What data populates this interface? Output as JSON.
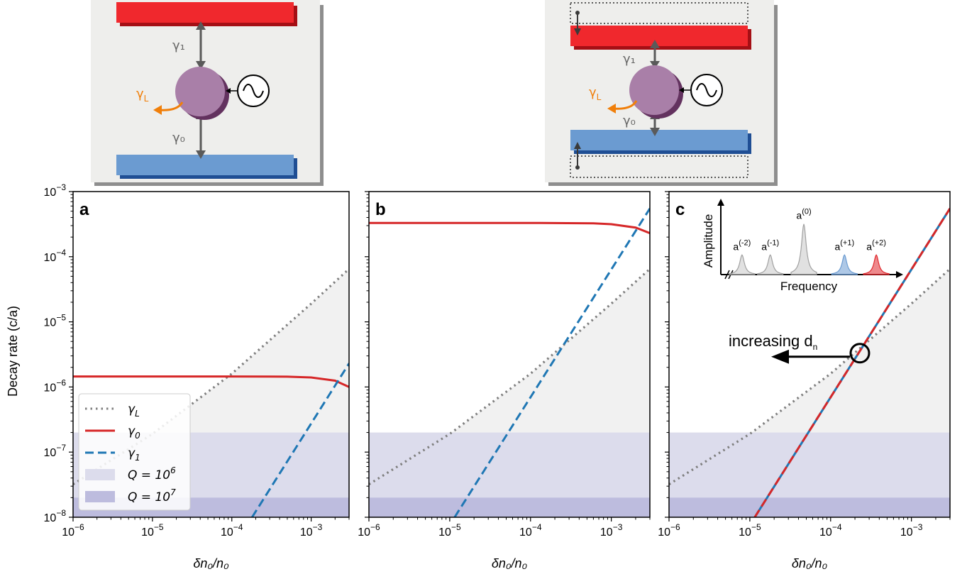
{
  "schematics": {
    "left": {
      "gamma1": "γ₁",
      "gamma0": "γ₀",
      "gammaL": "γ",
      "gammaL_sub": "L"
    },
    "right": {
      "gamma1": "γ₁",
      "gamma0": "γ₀",
      "gammaL": "γ",
      "gammaL_sub": "L"
    },
    "colors": {
      "top_mirror": "#f0282d",
      "bottom_mirror": "#6b9bd1",
      "resonator": "#a97fa8",
      "arrow_gray": "#5a5a5a",
      "orange": "#f07f0a"
    }
  },
  "chart_data": [
    {
      "panel": "a",
      "type": "line",
      "xscale": "log",
      "yscale": "log",
      "xlim": [
        1e-06,
        0.003
      ],
      "ylim": [
        1e-08,
        0.001
      ],
      "xlabel": "δn₀/n₀",
      "ylabel": "Decay rate (c/a)",
      "xticks": [
        {
          "value": 1e-06,
          "base": "10",
          "exp": "−6"
        },
        {
          "value": 1e-05,
          "base": "10",
          "exp": "−5"
        },
        {
          "value": 0.0001,
          "base": "10",
          "exp": "−4"
        },
        {
          "value": 0.001,
          "base": "10",
          "exp": "−3"
        }
      ],
      "yticks": [
        {
          "value": 1e-08,
          "base": "10",
          "exp": "−8"
        },
        {
          "value": 1e-07,
          "base": "10",
          "exp": "−7"
        },
        {
          "value": 1e-06,
          "base": "10",
          "exp": "−6"
        },
        {
          "value": 1e-05,
          "base": "10",
          "exp": "−5"
        },
        {
          "value": 0.0001,
          "base": "10",
          "exp": "−4"
        },
        {
          "value": 0.001,
          "base": "10",
          "exp": "−3"
        }
      ],
      "bands": [
        {
          "name": "Q = 10⁶",
          "y0": 1e-08,
          "y1": 2e-07,
          "color": "#dcdcec"
        },
        {
          "name": "Q = 10⁷",
          "y0": 1e-08,
          "y1": 2e-08,
          "color": "#bdbcde"
        }
      ],
      "upper_region_color": "#f1f1f1",
      "series": [
        {
          "name": "γL",
          "style": "dotted",
          "color": "#7f7f7f",
          "points": [
            [
              1e-06,
              3.2e-08
            ],
            [
              1e-05,
              1.9e-07
            ],
            [
              0.0001,
              1.6e-06
            ],
            [
              0.001,
              1.9e-05
            ],
            [
              0.003,
              6.5e-05
            ]
          ]
        },
        {
          "name": "γ0",
          "style": "solid",
          "color": "#d62728",
          "points": [
            [
              1e-06,
              1.45e-06
            ],
            [
              0.0001,
              1.45e-06
            ],
            [
              0.0005,
              1.44e-06
            ],
            [
              0.001,
              1.4e-06
            ],
            [
              0.002,
              1.25e-06
            ],
            [
              0.003,
              1e-06
            ]
          ]
        },
        {
          "name": "γ1",
          "style": "dashed",
          "color": "#1f77b4",
          "points": [
            [
              0.00018,
              1e-08
            ],
            [
              0.003,
              2.3e-06
            ]
          ]
        }
      ],
      "legend": {
        "placement": "lower-left",
        "entries": [
          {
            "label": "γ",
            "sub": "L",
            "kind": "dotted",
            "color": "#7f7f7f"
          },
          {
            "label": "γ",
            "sub": "0",
            "kind": "solid",
            "color": "#d62728"
          },
          {
            "label": "γ",
            "sub": "1",
            "kind": "dashed",
            "color": "#1f77b4"
          },
          {
            "label": "Q = 10",
            "sup": "6",
            "kind": "patch",
            "color": "#dcdcec"
          },
          {
            "label": "Q = 10",
            "sup": "7",
            "kind": "patch",
            "color": "#bdbcde"
          }
        ]
      }
    },
    {
      "panel": "b",
      "type": "line",
      "xscale": "log",
      "yscale": "log",
      "xlim": [
        1e-06,
        0.003
      ],
      "ylim": [
        1e-08,
        0.001
      ],
      "xlabel": "δn₀/n₀",
      "series": [
        {
          "name": "γL",
          "style": "dotted",
          "color": "#7f7f7f",
          "points": [
            [
              1e-06,
              3.2e-08
            ],
            [
              1e-05,
              1.9e-07
            ],
            [
              0.0001,
              1.6e-06
            ],
            [
              0.001,
              1.9e-05
            ],
            [
              0.003,
              6.5e-05
            ]
          ]
        },
        {
          "name": "γ0",
          "style": "solid",
          "color": "#d62728",
          "points": [
            [
              1e-06,
              0.00033
            ],
            [
              0.0001,
              0.00033
            ],
            [
              0.0006,
              0.000325
            ],
            [
              0.001,
              0.000315
            ],
            [
              0.002,
              0.00028
            ],
            [
              0.003,
              0.00023
            ]
          ]
        },
        {
          "name": "γ1",
          "style": "dashed",
          "color": "#1f77b4",
          "points": [
            [
              1.15e-05,
              1e-08
            ],
            [
              0.003,
              0.00055
            ]
          ]
        }
      ]
    },
    {
      "panel": "c",
      "type": "line",
      "xscale": "log",
      "yscale": "log",
      "xlim": [
        1e-06,
        0.003
      ],
      "ylim": [
        1e-08,
        0.001
      ],
      "xlabel": "δn₀/n₀",
      "series": [
        {
          "name": "γL",
          "style": "dotted",
          "color": "#7f7f7f",
          "points": [
            [
              1e-06,
              3.2e-08
            ],
            [
              1e-05,
              1.9e-07
            ],
            [
              0.0001,
              1.6e-06
            ],
            [
              0.001,
              1.9e-05
            ],
            [
              0.003,
              6.5e-05
            ]
          ]
        },
        {
          "name": "γ1",
          "style": "solid",
          "color": "#1f77b4",
          "points": [
            [
              1.15e-05,
              1e-08
            ],
            [
              0.003,
              0.00055
            ]
          ]
        },
        {
          "name": "γ0",
          "style": "dashed",
          "color": "#d62728",
          "points": [
            [
              1.15e-05,
              1e-08
            ],
            [
              0.003,
              0.00055
            ]
          ]
        }
      ],
      "crossing_marker": {
        "x": 0.00023,
        "y": 3.3e-06
      },
      "annotation": {
        "text": "increasing d",
        "sub": "n"
      },
      "inset": {
        "xlabel": "Frequency",
        "ylabel": "Amplitude",
        "peaks": [
          {
            "label": "a",
            "sup": "(-2)",
            "pos": 0.12,
            "height": 0.28,
            "color": "#c8c8c8"
          },
          {
            "label": "a",
            "sup": "(-1)",
            "pos": 0.28,
            "height": 0.28,
            "color": "#c8c8c8"
          },
          {
            "label": "a",
            "sup": "(0)",
            "pos": 0.47,
            "height": 0.72,
            "color": "#c8c8c8"
          },
          {
            "label": "a",
            "sup": "(+1)",
            "pos": 0.7,
            "height": 0.28,
            "color": "#6b9bd1"
          },
          {
            "label": "a",
            "sup": "(+2)",
            "pos": 0.88,
            "height": 0.28,
            "color": "#e0282d"
          }
        ]
      }
    }
  ]
}
